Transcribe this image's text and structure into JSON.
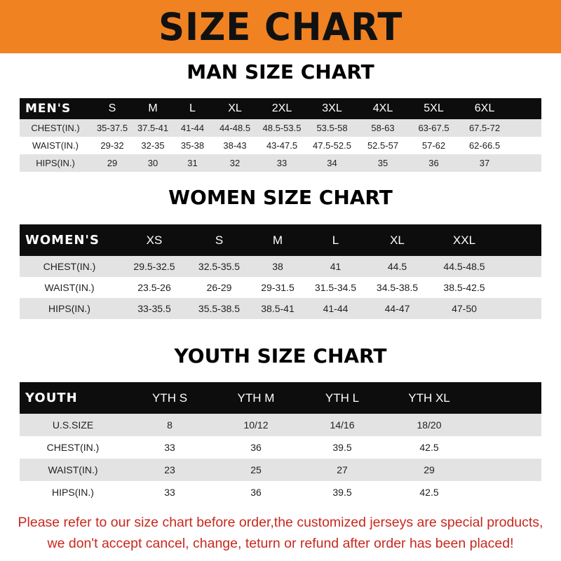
{
  "banner": {
    "title": "SIZE CHART",
    "color": "#f08222"
  },
  "men": {
    "title": "MAN SIZE CHART",
    "header": [
      "MEN'S",
      "S",
      "M",
      "L",
      "XL",
      "2XL",
      "3XL",
      "4XL",
      "5XL",
      "6XL"
    ],
    "rows": [
      [
        "CHEST(IN.)",
        "35-37.5",
        "37.5-41",
        "41-44",
        "44-48.5",
        "48.5-53.5",
        "53.5-58",
        "58-63",
        "63-67.5",
        "67.5-72"
      ],
      [
        "WAIST(IN.)",
        "29-32",
        "32-35",
        "35-38",
        "38-43",
        "43-47.5",
        "47.5-52.5",
        "52.5-57",
        "57-62",
        "62-66.5"
      ],
      [
        "HIPS(IN.)",
        "29",
        "30",
        "31",
        "32",
        "33",
        "34",
        "35",
        "36",
        "37"
      ]
    ]
  },
  "women": {
    "title": "WOMEN SIZE CHART",
    "header": [
      "WOMEN'S",
      "XS",
      "S",
      "M",
      "L",
      "XL",
      "XXL"
    ],
    "rows": [
      [
        "CHEST(IN.)",
        "29.5-32.5",
        "32.5-35.5",
        "38",
        "41",
        "44.5",
        "44.5-48.5"
      ],
      [
        "WAIST(IN.)",
        "23.5-26",
        "26-29",
        "29-31.5",
        "31.5-34.5",
        "34.5-38.5",
        "38.5-42.5"
      ],
      [
        "HIPS(IN.)",
        "33-35.5",
        "35.5-38.5",
        "38.5-41",
        "41-44",
        "44-47",
        "47-50"
      ]
    ]
  },
  "youth": {
    "title": "YOUTH SIZE CHART",
    "header": [
      "YOUTH",
      "YTH S",
      "YTH M",
      "YTH L",
      "YTH XL"
    ],
    "rows": [
      [
        "U.S.SIZE",
        "8",
        "10/12",
        "14/16",
        "18/20"
      ],
      [
        "CHEST(IN.)",
        "33",
        "36",
        "39.5",
        "42.5"
      ],
      [
        "WAIST(IN.)",
        "23",
        "25",
        "27",
        "29"
      ],
      [
        "HIPS(IN.)",
        "33",
        "36",
        "39.5",
        "42.5"
      ]
    ]
  },
  "notice": {
    "line1": "Please refer to our size chart before order,the customized jerseys are special products,",
    "line2": "we don't accept cancel, change, teturn or refund after order has been placed!",
    "color": "#c8281e"
  }
}
